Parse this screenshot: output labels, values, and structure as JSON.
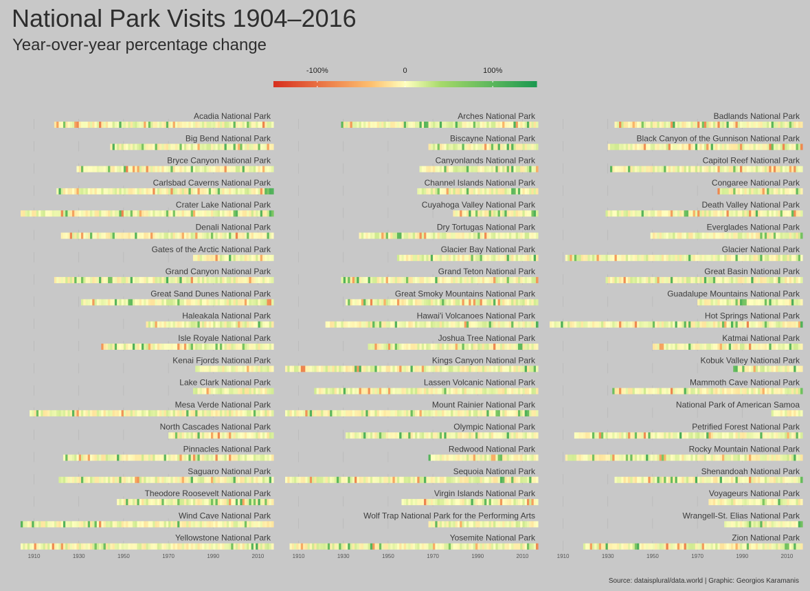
{
  "title": "National Park Visits 1904–2016",
  "subtitle": "Year-over-year percentage change",
  "caption": "Source: dataisplural/data.world | Graphic: Georgios Karamanis",
  "colors": {
    "background": "#c8c8c8",
    "low": "#d7301f",
    "mid_low": "#fdbf6f",
    "mid": "#ffffbf",
    "mid_high": "#a6d96a",
    "high": "#1a9850",
    "grid": "#b4b4b4"
  },
  "chart_data": {
    "type": "heatmap",
    "description_scale": "year-over-year percentage change",
    "legend": {
      "ticks": [
        {
          "value": -100,
          "label": "-100%"
        },
        {
          "value": 0,
          "label": "0"
        },
        {
          "value": 100,
          "label": "100%"
        }
      ],
      "range": [
        -150,
        150
      ],
      "placement": "top-center"
    },
    "x_ticks": [
      1910,
      1930,
      1950,
      1970,
      1990,
      2010
    ],
    "xlim": [
      1904,
      2016
    ],
    "parks": [
      {
        "name": "Acadia National Park",
        "start": 1919
      },
      {
        "name": "Arches National Park",
        "start": 1929
      },
      {
        "name": "Badlands National Park",
        "start": 1933
      },
      {
        "name": "Big Bend National Park",
        "start": 1944
      },
      {
        "name": "Biscayne National Park",
        "start": 1968
      },
      {
        "name": "Black Canyon of the Gunnison National Park",
        "start": 1930
      },
      {
        "name": "Bryce Canyon National Park",
        "start": 1929
      },
      {
        "name": "Canyonlands National Park",
        "start": 1964
      },
      {
        "name": "Capitol Reef National Park",
        "start": 1931
      },
      {
        "name": "Carlsbad Caverns National Park",
        "start": 1920
      },
      {
        "name": "Channel Islands National Park",
        "start": 1963
      },
      {
        "name": "Congaree National Park",
        "start": 1979
      },
      {
        "name": "Crater Lake National Park",
        "start": 1904
      },
      {
        "name": "Cuyahoga Valley National Park",
        "start": 1979
      },
      {
        "name": "Death Valley National Park",
        "start": 1929
      },
      {
        "name": "Denali National Park",
        "start": 1922
      },
      {
        "name": "Dry Tortugas National Park",
        "start": 1937
      },
      {
        "name": "Everglades National Park",
        "start": 1949
      },
      {
        "name": "Gates of the Arctic National Park",
        "start": 1981
      },
      {
        "name": "Glacier Bay National Park",
        "start": 1954
      },
      {
        "name": "Glacier National Park",
        "start": 1911
      },
      {
        "name": "Grand Canyon National Park",
        "start": 1919
      },
      {
        "name": "Grand Teton National Park",
        "start": 1929
      },
      {
        "name": "Great Basin National Park",
        "start": 1929
      },
      {
        "name": "Great Sand Dunes National Park",
        "start": 1931
      },
      {
        "name": "Great Smoky Mountains National Park",
        "start": 1931
      },
      {
        "name": "Guadalupe Mountains National Park",
        "start": 1970
      },
      {
        "name": "Haleakala National Park",
        "start": 1960
      },
      {
        "name": "Hawai'i Volcanoes National Park",
        "start": 1922
      },
      {
        "name": "Hot Springs National Park",
        "start": 1904
      },
      {
        "name": "Isle Royale National Park",
        "start": 1940
      },
      {
        "name": "Joshua Tree National Park",
        "start": 1941
      },
      {
        "name": "Katmai National Park",
        "start": 1950
      },
      {
        "name": "Kenai Fjords National Park",
        "start": 1982
      },
      {
        "name": "Kings Canyon National Park",
        "start": 1904
      },
      {
        "name": "Kobuk Valley National Park",
        "start": 1986
      },
      {
        "name": "Lake Clark National Park",
        "start": 1981
      },
      {
        "name": "Lassen Volcanic National Park",
        "start": 1917
      },
      {
        "name": "Mammoth Cave National Park",
        "start": 1932
      },
      {
        "name": "Mesa Verde National Park",
        "start": 1908
      },
      {
        "name": "Mount Rainier National Park",
        "start": 1904
      },
      {
        "name": "National Park of American Samoa",
        "start": 2003
      },
      {
        "name": "North Cascades National Park",
        "start": 1970
      },
      {
        "name": "Olympic National Park",
        "start": 1931
      },
      {
        "name": "Petrified Forest National Park",
        "start": 1915
      },
      {
        "name": "Pinnacles National Park",
        "start": 1923
      },
      {
        "name": "Redwood National Park",
        "start": 1968
      },
      {
        "name": "Rocky Mountain National Park",
        "start": 1911
      },
      {
        "name": "Saguaro National Park",
        "start": 1921
      },
      {
        "name": "Sequoia National Park",
        "start": 1904
      },
      {
        "name": "Shenandoah National Park",
        "start": 1933
      },
      {
        "name": "Theodore Roosevelt National Park",
        "start": 1947
      },
      {
        "name": "Virgin Islands National Park",
        "start": 1956
      },
      {
        "name": "Voyageurs National Park",
        "start": 1975
      },
      {
        "name": "Wind Cave National Park",
        "start": 1904
      },
      {
        "name": "Wolf Trap National Park for the Performing Arts",
        "start": 1968
      },
      {
        "name": "Wrangell-St. Elias National Park",
        "start": 1982
      },
      {
        "name": "Yellowstone National Park",
        "start": 1904
      },
      {
        "name": "Yosemite National Park",
        "start": 1906
      },
      {
        "name": "Zion National Park",
        "start": 1919
      }
    ]
  }
}
